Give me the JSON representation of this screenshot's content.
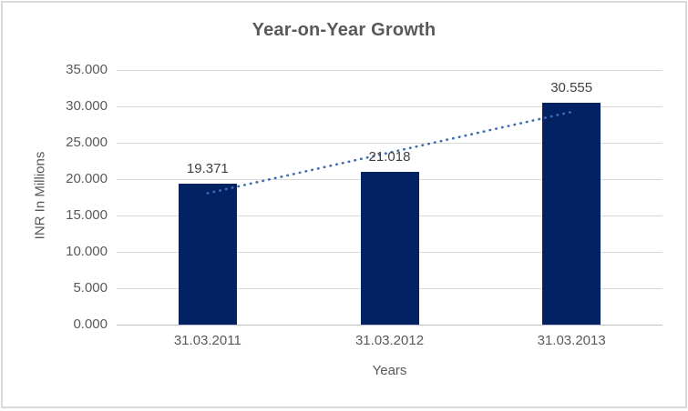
{
  "chart_data": {
    "type": "bar",
    "title": "Year-on-Year Growth",
    "categories": [
      "31.03.2011",
      "31.03.2012",
      "31.03.2013"
    ],
    "values": [
      19.371,
      21.018,
      30.555
    ],
    "data_labels": [
      "19.371",
      "21.018",
      "30.555"
    ],
    "xlabel": "Years",
    "ylabel": "INR In Millions",
    "ylim": [
      0,
      35
    ],
    "ytick_interval": 5,
    "ytick_labels": [
      "0.000",
      "5.000",
      "10.000",
      "15.000",
      "20.000",
      "25.000",
      "30.000",
      "35.000"
    ],
    "grid": true,
    "legend": false,
    "trendline": {
      "type": "linear",
      "line_style": "dotted",
      "start_value": 18.06,
      "end_value": 29.24,
      "color": "#3E6CB5"
    },
    "colors": {
      "bar": "#032264",
      "trendline": "#3E6CB5",
      "grid": "#D9D9D9",
      "axis_line": "#BFBFBF",
      "text": "#595959",
      "data_label_text": "#3F3F3F",
      "border": "#D9D9D9",
      "background": "#FFFFFF"
    }
  }
}
